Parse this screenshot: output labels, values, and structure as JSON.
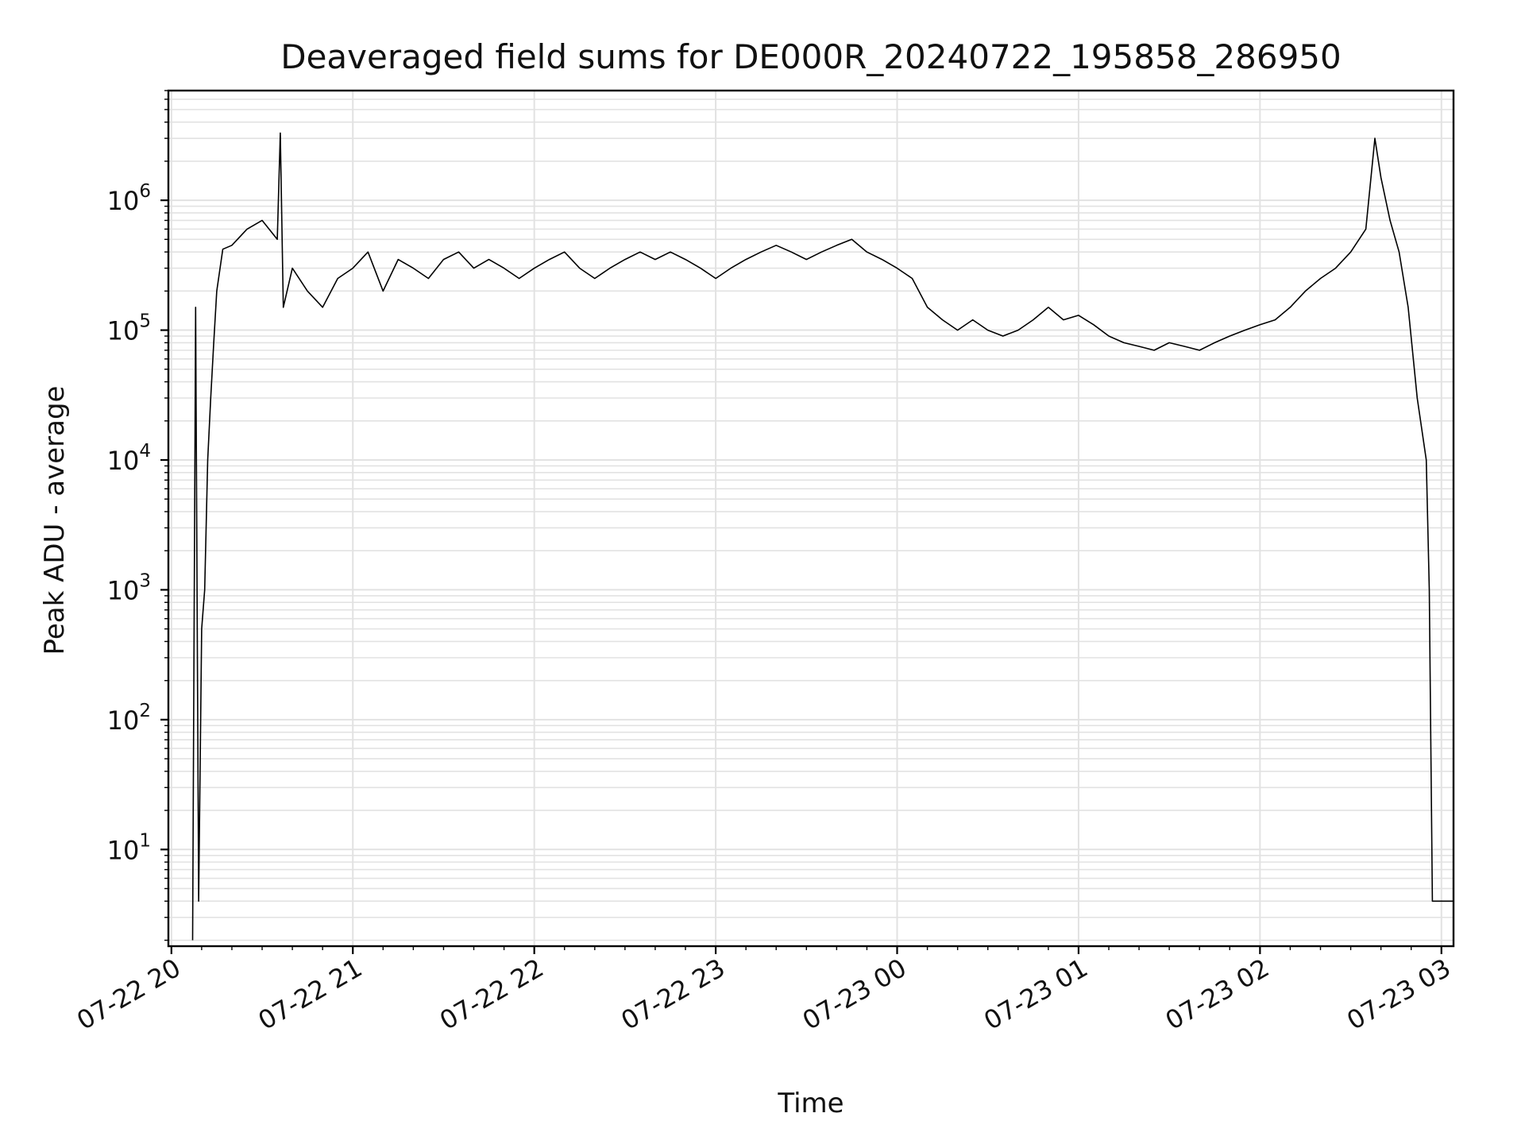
{
  "chart_data": {
    "type": "line",
    "title": "Deaveraged field sums for DE000R_20240722_195858_286950",
    "xlabel": "Time",
    "ylabel": "Peak ADU - average",
    "x_scale": "time",
    "y_scale": "log",
    "xlim": [
      "2024-07-22 19:59",
      "2024-07-23 03:04"
    ],
    "ylim": [
      1.8,
      7000000
    ],
    "grid": true,
    "legend": "none",
    "colors": {
      "line": "#000000",
      "grid": "#e2e2e2",
      "axes": "#000000"
    },
    "x_ticks": [
      {
        "value": "2024-07-22 20:00",
        "label": "07-22 20"
      },
      {
        "value": "2024-07-22 21:00",
        "label": "07-22 21"
      },
      {
        "value": "2024-07-22 22:00",
        "label": "07-22 22"
      },
      {
        "value": "2024-07-22 23:00",
        "label": "07-22 23"
      },
      {
        "value": "2024-07-23 00:00",
        "label": "07-23 00"
      },
      {
        "value": "2024-07-23 01:00",
        "label": "07-23 01"
      },
      {
        "value": "2024-07-23 02:00",
        "label": "07-23 02"
      },
      {
        "value": "2024-07-23 03:00",
        "label": "07-23 03"
      }
    ],
    "y_ticks": [
      {
        "value": 10,
        "label": "10",
        "exp": "1"
      },
      {
        "value": 100,
        "label": "10",
        "exp": "2"
      },
      {
        "value": 1000,
        "label": "10",
        "exp": "3"
      },
      {
        "value": 10000,
        "label": "10",
        "exp": "4"
      },
      {
        "value": 100000,
        "label": "10",
        "exp": "5"
      },
      {
        "value": 1000000,
        "label": "10",
        "exp": "6"
      }
    ],
    "series": [
      {
        "x": [
          "2024-07-22 20:07",
          "2024-07-22 20:08",
          "2024-07-22 20:09",
          "2024-07-22 20:10",
          "2024-07-22 20:11",
          "2024-07-22 20:12",
          "2024-07-22 20:13",
          "2024-07-22 20:14",
          "2024-07-22 20:15",
          "2024-07-22 20:17",
          "2024-07-22 20:20",
          "2024-07-22 20:25",
          "2024-07-22 20:30",
          "2024-07-22 20:35",
          "2024-07-22 20:36",
          "2024-07-22 20:37",
          "2024-07-22 20:40",
          "2024-07-22 20:45",
          "2024-07-22 20:50",
          "2024-07-22 20:55",
          "2024-07-22 21:00",
          "2024-07-22 21:05",
          "2024-07-22 21:10",
          "2024-07-22 21:15",
          "2024-07-22 21:20",
          "2024-07-22 21:25",
          "2024-07-22 21:30",
          "2024-07-22 21:35",
          "2024-07-22 21:40",
          "2024-07-22 21:45",
          "2024-07-22 21:50",
          "2024-07-22 21:55",
          "2024-07-22 22:00",
          "2024-07-22 22:05",
          "2024-07-22 22:10",
          "2024-07-22 22:15",
          "2024-07-22 22:20",
          "2024-07-22 22:25",
          "2024-07-22 22:30",
          "2024-07-22 22:35",
          "2024-07-22 22:40",
          "2024-07-22 22:45",
          "2024-07-22 22:50",
          "2024-07-22 22:55",
          "2024-07-22 23:00",
          "2024-07-22 23:05",
          "2024-07-22 23:10",
          "2024-07-22 23:15",
          "2024-07-22 23:20",
          "2024-07-22 23:25",
          "2024-07-22 23:30",
          "2024-07-22 23:35",
          "2024-07-22 23:40",
          "2024-07-22 23:45",
          "2024-07-22 23:50",
          "2024-07-22 23:55",
          "2024-07-23 00:00",
          "2024-07-23 00:05",
          "2024-07-23 00:10",
          "2024-07-23 00:15",
          "2024-07-23 00:20",
          "2024-07-23 00:25",
          "2024-07-23 00:30",
          "2024-07-23 00:35",
          "2024-07-23 00:40",
          "2024-07-23 00:45",
          "2024-07-23 00:50",
          "2024-07-23 00:55",
          "2024-07-23 01:00",
          "2024-07-23 01:05",
          "2024-07-23 01:10",
          "2024-07-23 01:15",
          "2024-07-23 01:20",
          "2024-07-23 01:25",
          "2024-07-23 01:30",
          "2024-07-23 01:35",
          "2024-07-23 01:40",
          "2024-07-23 01:45",
          "2024-07-23 01:50",
          "2024-07-23 01:55",
          "2024-07-23 02:00",
          "2024-07-23 02:05",
          "2024-07-23 02:10",
          "2024-07-23 02:15",
          "2024-07-23 02:20",
          "2024-07-23 02:25",
          "2024-07-23 02:30",
          "2024-07-23 02:35",
          "2024-07-23 02:38",
          "2024-07-23 02:40",
          "2024-07-23 02:43",
          "2024-07-23 02:46",
          "2024-07-23 02:49",
          "2024-07-23 02:52",
          "2024-07-23 02:55",
          "2024-07-23 02:56",
          "2024-07-23 02:57",
          "2024-07-23 03:00",
          "2024-07-23 03:04"
        ],
        "y": [
          2,
          150000,
          4,
          500,
          1000,
          10000,
          30000,
          80000,
          200000,
          420000,
          450000,
          600000,
          700000,
          500000,
          3300000,
          150000,
          300000,
          200000,
          150000,
          250000,
          300000,
          400000,
          200000,
          350000,
          300000,
          250000,
          350000,
          400000,
          300000,
          350000,
          300000,
          250000,
          300000,
          350000,
          400000,
          300000,
          250000,
          300000,
          350000,
          400000,
          350000,
          400000,
          350000,
          300000,
          250000,
          300000,
          350000,
          400000,
          450000,
          400000,
          350000,
          400000,
          450000,
          500000,
          400000,
          350000,
          300000,
          250000,
          150000,
          120000,
          100000,
          120000,
          100000,
          90000,
          100000,
          120000,
          150000,
          120000,
          130000,
          110000,
          90000,
          80000,
          75000,
          70000,
          80000,
          75000,
          70000,
          80000,
          90000,
          100000,
          110000,
          120000,
          150000,
          200000,
          250000,
          300000,
          400000,
          600000,
          3000000,
          1500000,
          700000,
          400000,
          150000,
          30000,
          10000,
          1000,
          4,
          4,
          4
        ]
      }
    ]
  }
}
